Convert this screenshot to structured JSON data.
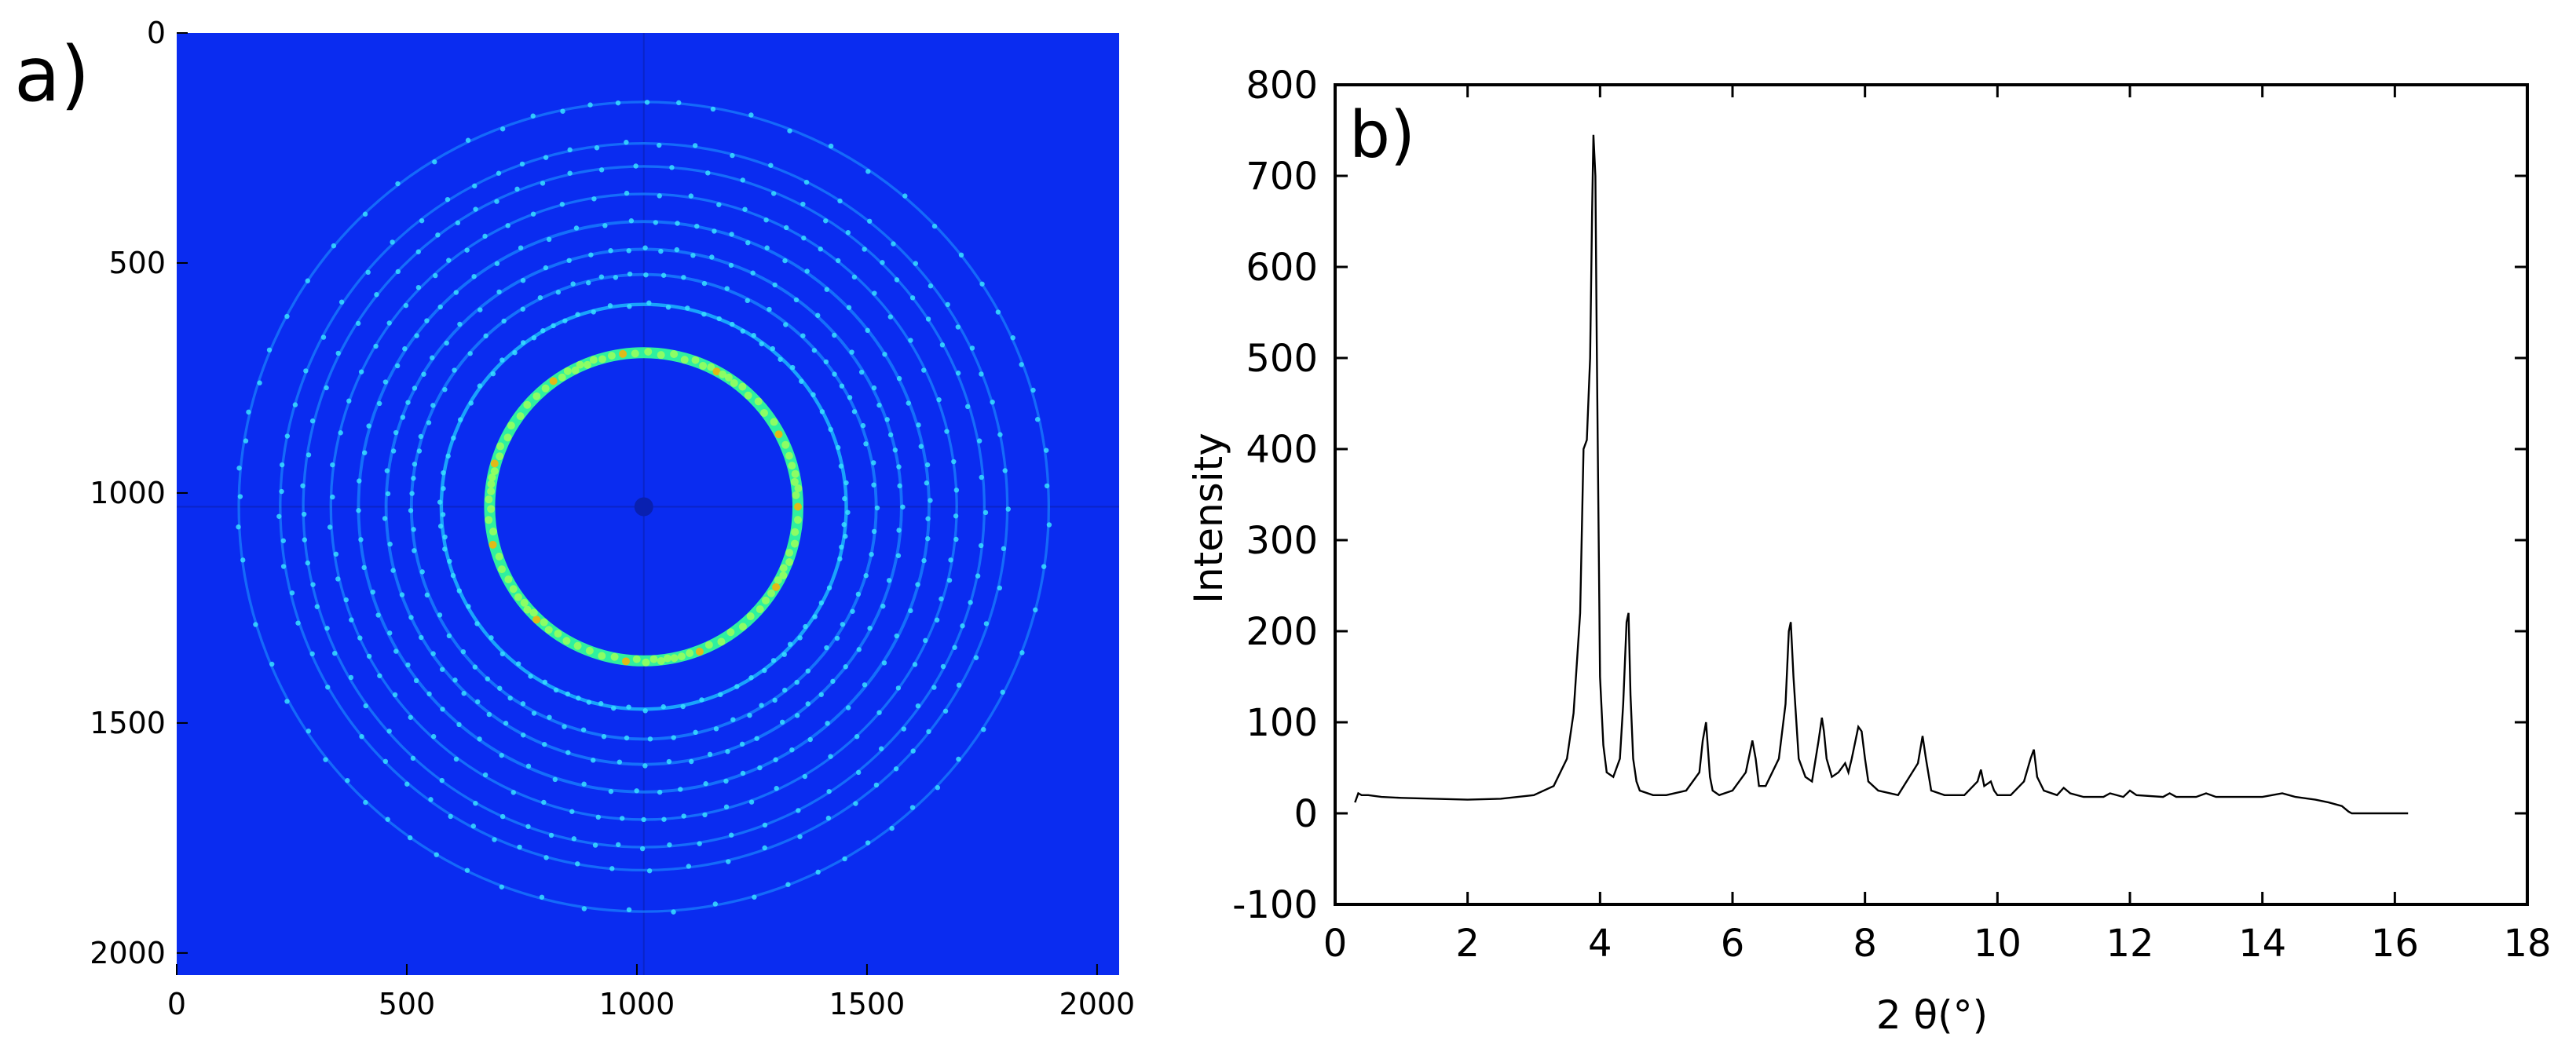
{
  "chart_data": [
    {
      "type": "heatmap",
      "panel_label": "a)",
      "description_visible": "2D detector image with concentric diffraction rings (jet colormap, blue background)",
      "x_ticks": [
        "0",
        "500",
        "1000",
        "1500",
        "2000"
      ],
      "y_ticks": [
        "0",
        "500",
        "1000",
        "1500",
        "2000"
      ],
      "xlim": [
        0,
        2048
      ],
      "ylim": [
        2048,
        0
      ],
      "center": [
        1015,
        1030
      ],
      "rings": [
        {
          "radius": 335,
          "intensity": 0.95,
          "width": 14
        },
        {
          "radius": 440,
          "intensity": 0.55,
          "width": 8
        },
        {
          "radius": 505,
          "intensity": 0.45,
          "width": 7
        },
        {
          "radius": 560,
          "intensity": 0.42,
          "width": 7
        },
        {
          "radius": 620,
          "intensity": 0.4,
          "width": 7
        },
        {
          "radius": 680,
          "intensity": 0.35,
          "width": 6
        },
        {
          "radius": 740,
          "intensity": 0.32,
          "width": 6
        },
        {
          "radius": 790,
          "intensity": 0.28,
          "width": 6
        },
        {
          "radius": 880,
          "intensity": 0.25,
          "width": 6
        }
      ],
      "colors": {
        "background": "#0a2cf0",
        "inside": "#0830e6"
      }
    },
    {
      "type": "line",
      "panel_label": "b)",
      "xlabel": "2 θ(°)",
      "ylabel": "Intensity",
      "xlim": [
        0,
        18
      ],
      "ylim": [
        -100,
        800
      ],
      "x_ticks": [
        0,
        2,
        4,
        6,
        8,
        10,
        12,
        14,
        16,
        18
      ],
      "y_ticks": [
        -100,
        0,
        100,
        200,
        300,
        400,
        500,
        600,
        700,
        800
      ],
      "line_color": "#000000",
      "series": [
        {
          "x": [
            0.3,
            0.35,
            0.4,
            0.5,
            0.7,
            1.0,
            1.5,
            2.0,
            2.5,
            3.0,
            3.3,
            3.5,
            3.6,
            3.7,
            3.75,
            3.8,
            3.85,
            3.88,
            3.9,
            3.93,
            3.95,
            3.98,
            4.0,
            4.05,
            4.1,
            4.2,
            4.3,
            4.35,
            4.4,
            4.43,
            4.46,
            4.5,
            4.55,
            4.6,
            4.8,
            5.0,
            5.3,
            5.5,
            5.55,
            5.6,
            5.63,
            5.66,
            5.7,
            5.8,
            6.0,
            6.2,
            6.3,
            6.35,
            6.4,
            6.5,
            6.7,
            6.8,
            6.85,
            6.88,
            6.92,
            7.0,
            7.1,
            7.2,
            7.3,
            7.35,
            7.38,
            7.42,
            7.5,
            7.6,
            7.7,
            7.75,
            7.8,
            7.9,
            7.95,
            8.0,
            8.05,
            8.2,
            8.5,
            8.8,
            8.87,
            8.92,
            9.0,
            9.2,
            9.5,
            9.7,
            9.75,
            9.8,
            9.9,
            9.95,
            10.0,
            10.2,
            10.4,
            10.5,
            10.55,
            10.6,
            10.7,
            10.9,
            11.0,
            11.1,
            11.3,
            11.6,
            11.7,
            11.9,
            12.0,
            12.1,
            12.5,
            12.6,
            12.7,
            13.0,
            13.15,
            13.3,
            13.6,
            14.0,
            14.3,
            14.5,
            14.8,
            15.0,
            15.2,
            15.3,
            15.35,
            15.4,
            15.8,
            16.2
          ],
          "y": [
            12,
            22,
            20,
            20,
            18,
            17,
            16,
            15,
            16,
            20,
            30,
            60,
            110,
            220,
            400,
            410,
            500,
            660,
            745,
            700,
            520,
            300,
            150,
            75,
            45,
            40,
            60,
            120,
            210,
            220,
            130,
            60,
            35,
            25,
            20,
            20,
            25,
            45,
            80,
            100,
            70,
            40,
            25,
            20,
            25,
            45,
            80,
            60,
            30,
            30,
            60,
            120,
            200,
            210,
            150,
            60,
            40,
            35,
            80,
            105,
            90,
            60,
            40,
            45,
            55,
            45,
            60,
            95,
            90,
            60,
            35,
            25,
            20,
            55,
            85,
            60,
            25,
            20,
            20,
            35,
            48,
            30,
            35,
            25,
            20,
            20,
            35,
            60,
            70,
            40,
            25,
            20,
            28,
            22,
            18,
            18,
            22,
            18,
            25,
            20,
            18,
            22,
            18,
            18,
            22,
            18,
            18,
            18,
            22,
            18,
            15,
            12,
            8,
            2,
            0,
            0,
            0,
            0
          ]
        }
      ]
    }
  ]
}
